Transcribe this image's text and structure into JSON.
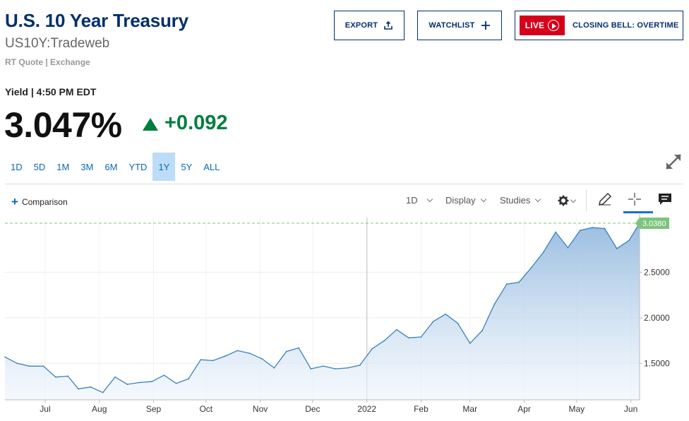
{
  "header": {
    "title": "U.S. 10 Year Treasury",
    "symbol": "US10Y:Tradeweb",
    "quote_type": "RT Quote | Exchange"
  },
  "buttons": {
    "export": "EXPORT",
    "watchlist": "WATCHLIST",
    "live": "LIVE",
    "closing_bell": "CLOSING BELL: OVERTIME"
  },
  "quote": {
    "yield_label": "Yield | 4:50 PM EDT",
    "price": "3.047%",
    "change": "+0.092",
    "direction": "up"
  },
  "ranges": [
    {
      "label": "1D",
      "active": false
    },
    {
      "label": "5D",
      "active": false
    },
    {
      "label": "1M",
      "active": false
    },
    {
      "label": "3M",
      "active": false
    },
    {
      "label": "6M",
      "active": false
    },
    {
      "label": "YTD",
      "active": false
    },
    {
      "label": "1Y",
      "active": true
    },
    {
      "label": "5Y",
      "active": false
    },
    {
      "label": "ALL",
      "active": false
    }
  ],
  "toolbar": {
    "comparison": "Comparison",
    "interval": "1D",
    "display": "Display",
    "studies": "Studies"
  },
  "icons": {
    "export": "share-icon",
    "watchlist": "plus-icon",
    "live": "play-circle-icon",
    "expand": "expand-arrows-icon",
    "settings": "gear-icon",
    "draw": "pencil-icon",
    "crosshair": "crosshair-icon",
    "comments": "chat-icon"
  },
  "colors": {
    "title": "#002f6c",
    "accent": "#0a6ab0",
    "up": "#007e3f",
    "live": "#d5001c",
    "line": "#3a80bf",
    "last_badge": "#7cc47c"
  },
  "chart_data": {
    "type": "area",
    "last_value_label": "3.0380",
    "y_ticks": [
      "1.5000",
      "2.0000",
      "2.5000"
    ],
    "ylim": [
      1.1,
      3.1
    ],
    "x_ticks": [
      "Jul",
      "Aug",
      "Sep",
      "Oct",
      "Nov",
      "Dec",
      "2022",
      "Feb",
      "Mar",
      "Apr",
      "May",
      "Jun"
    ],
    "x_range": [
      "2021-06-08",
      "2022-06-06"
    ],
    "series": [
      {
        "points": [
          [
            "2021-06-08",
            1.57
          ],
          [
            "2021-06-15",
            1.5
          ],
          [
            "2021-06-22",
            1.47
          ],
          [
            "2021-06-30",
            1.47
          ],
          [
            "2021-07-07",
            1.35
          ],
          [
            "2021-07-14",
            1.36
          ],
          [
            "2021-07-20",
            1.22
          ],
          [
            "2021-07-27",
            1.24
          ],
          [
            "2021-08-03",
            1.18
          ],
          [
            "2021-08-10",
            1.35
          ],
          [
            "2021-08-17",
            1.27
          ],
          [
            "2021-08-24",
            1.29
          ],
          [
            "2021-08-31",
            1.3
          ],
          [
            "2021-09-07",
            1.37
          ],
          [
            "2021-09-14",
            1.28
          ],
          [
            "2021-09-21",
            1.33
          ],
          [
            "2021-09-28",
            1.54
          ],
          [
            "2021-10-05",
            1.53
          ],
          [
            "2021-10-12",
            1.58
          ],
          [
            "2021-10-19",
            1.64
          ],
          [
            "2021-10-26",
            1.61
          ],
          [
            "2021-11-02",
            1.55
          ],
          [
            "2021-11-09",
            1.45
          ],
          [
            "2021-11-16",
            1.63
          ],
          [
            "2021-11-23",
            1.67
          ],
          [
            "2021-11-30",
            1.44
          ],
          [
            "2021-12-07",
            1.47
          ],
          [
            "2021-12-14",
            1.44
          ],
          [
            "2021-12-21",
            1.45
          ],
          [
            "2021-12-28",
            1.48
          ],
          [
            "2022-01-04",
            1.66
          ],
          [
            "2022-01-11",
            1.75
          ],
          [
            "2022-01-18",
            1.87
          ],
          [
            "2022-01-25",
            1.78
          ],
          [
            "2022-02-01",
            1.79
          ],
          [
            "2022-02-08",
            1.96
          ],
          [
            "2022-02-15",
            2.04
          ],
          [
            "2022-02-22",
            1.94
          ],
          [
            "2022-03-01",
            1.72
          ],
          [
            "2022-03-08",
            1.86
          ],
          [
            "2022-03-15",
            2.15
          ],
          [
            "2022-03-22",
            2.37
          ],
          [
            "2022-03-29",
            2.39
          ],
          [
            "2022-04-05",
            2.55
          ],
          [
            "2022-04-12",
            2.72
          ],
          [
            "2022-04-19",
            2.94
          ],
          [
            "2022-04-26",
            2.77
          ],
          [
            "2022-05-03",
            2.96
          ],
          [
            "2022-05-10",
            2.99
          ],
          [
            "2022-05-17",
            2.98
          ],
          [
            "2022-05-24",
            2.76
          ],
          [
            "2022-05-31",
            2.85
          ],
          [
            "2022-06-06",
            3.038
          ]
        ]
      }
    ]
  }
}
